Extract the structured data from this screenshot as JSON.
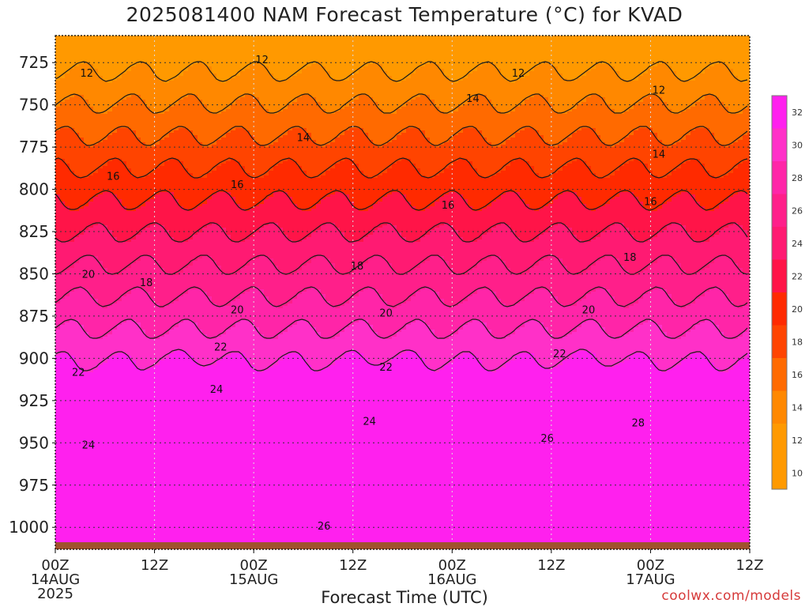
{
  "page": {
    "title": "2025081400 NAM Forecast Temperature (°C) for KVAD",
    "xlabel": "Forecast Time (UTC)",
    "credit": "coolwx.com/models"
  },
  "colors": {
    "band_10_12": "#ff9900",
    "band_12_14": "#ff8800",
    "band_14_16": "#ff6a00",
    "band_16_18": "#ff4400",
    "band_18_20": "#ff2a00",
    "band_20_22": "#ff1448",
    "band_22_24": "#ff1a72",
    "band_24_26": "#ff1f8a",
    "band_26_28": "#ff25a8",
    "band_28_30": "#ff30c8",
    "band_30_32": "#ff20ee",
    "ground": "#a0522d"
  },
  "chart_data": {
    "type": "heatmap",
    "title": "2025081400 NAM Forecast Temperature (°C) for KVAD",
    "xlabel": "Forecast Time (UTC)",
    "ylabel": "",
    "x_ticks": [
      {
        "hour": 0,
        "label": "00Z",
        "sub": "14AUG",
        "year": "2025"
      },
      {
        "hour": 12,
        "label": "12Z",
        "sub": "",
        "year": ""
      },
      {
        "hour": 24,
        "label": "00Z",
        "sub": "15AUG",
        "year": ""
      },
      {
        "hour": 36,
        "label": "12Z",
        "sub": "",
        "year": ""
      },
      {
        "hour": 48,
        "label": "00Z",
        "sub": "16AUG",
        "year": ""
      },
      {
        "hour": 60,
        "label": "12Z",
        "sub": "",
        "year": ""
      },
      {
        "hour": 72,
        "label": "00Z",
        "sub": "17AUG",
        "year": ""
      },
      {
        "hour": 84,
        "label": "12Z",
        "sub": "",
        "year": ""
      }
    ],
    "xlim": [
      0,
      84
    ],
    "y_ticks": [
      725,
      750,
      775,
      800,
      825,
      850,
      875,
      900,
      925,
      950,
      975,
      1000
    ],
    "ylim": [
      709,
      1013
    ],
    "surface_pressure_hPa": 1006,
    "colorbar_ticks": [
      10,
      12,
      14,
      16,
      18,
      20,
      22,
      24,
      26,
      28,
      30,
      32
    ],
    "contour_labels": [
      {
        "value": "12",
        "hour": 3.8,
        "p": 731
      },
      {
        "value": "12",
        "hour": 25.0,
        "p": 723
      },
      {
        "value": "12",
        "hour": 56.0,
        "p": 731
      },
      {
        "value": "12",
        "hour": 73.0,
        "p": 741
      },
      {
        "value": "14",
        "hour": 50.5,
        "p": 746
      },
      {
        "value": "14",
        "hour": 30.0,
        "p": 769
      },
      {
        "value": "14",
        "hour": 73.0,
        "p": 779
      },
      {
        "value": "16",
        "hour": 7.0,
        "p": 792
      },
      {
        "value": "16",
        "hour": 22.0,
        "p": 797
      },
      {
        "value": "16",
        "hour": 47.5,
        "p": 809
      },
      {
        "value": "16",
        "hour": 72.0,
        "p": 807
      },
      {
        "value": "18",
        "hour": 36.5,
        "p": 845
      },
      {
        "value": "18",
        "hour": 69.5,
        "p": 840
      },
      {
        "value": "20",
        "hour": 4.0,
        "p": 850
      },
      {
        "value": "18",
        "hour": 11.0,
        "p": 855
      },
      {
        "value": "20",
        "hour": 22.0,
        "p": 871
      },
      {
        "value": "20",
        "hour": 40.0,
        "p": 873
      },
      {
        "value": "20",
        "hour": 64.5,
        "p": 871
      },
      {
        "value": "22",
        "hour": 20.0,
        "p": 893
      },
      {
        "value": "22",
        "hour": 2.8,
        "p": 908
      },
      {
        "value": "22",
        "hour": 40.0,
        "p": 905
      },
      {
        "value": "22",
        "hour": 61.0,
        "p": 897
      },
      {
        "value": "24",
        "hour": 19.5,
        "p": 918
      },
      {
        "value": "24",
        "hour": 38.0,
        "p": 937
      },
      {
        "value": "24",
        "hour": 4.0,
        "p": 951
      },
      {
        "value": "26",
        "hour": 59.5,
        "p": 947
      },
      {
        "value": "28",
        "hour": 70.5,
        "p": 938
      },
      {
        "value": "26",
        "hour": 32.5,
        "p": 999
      }
    ]
  }
}
